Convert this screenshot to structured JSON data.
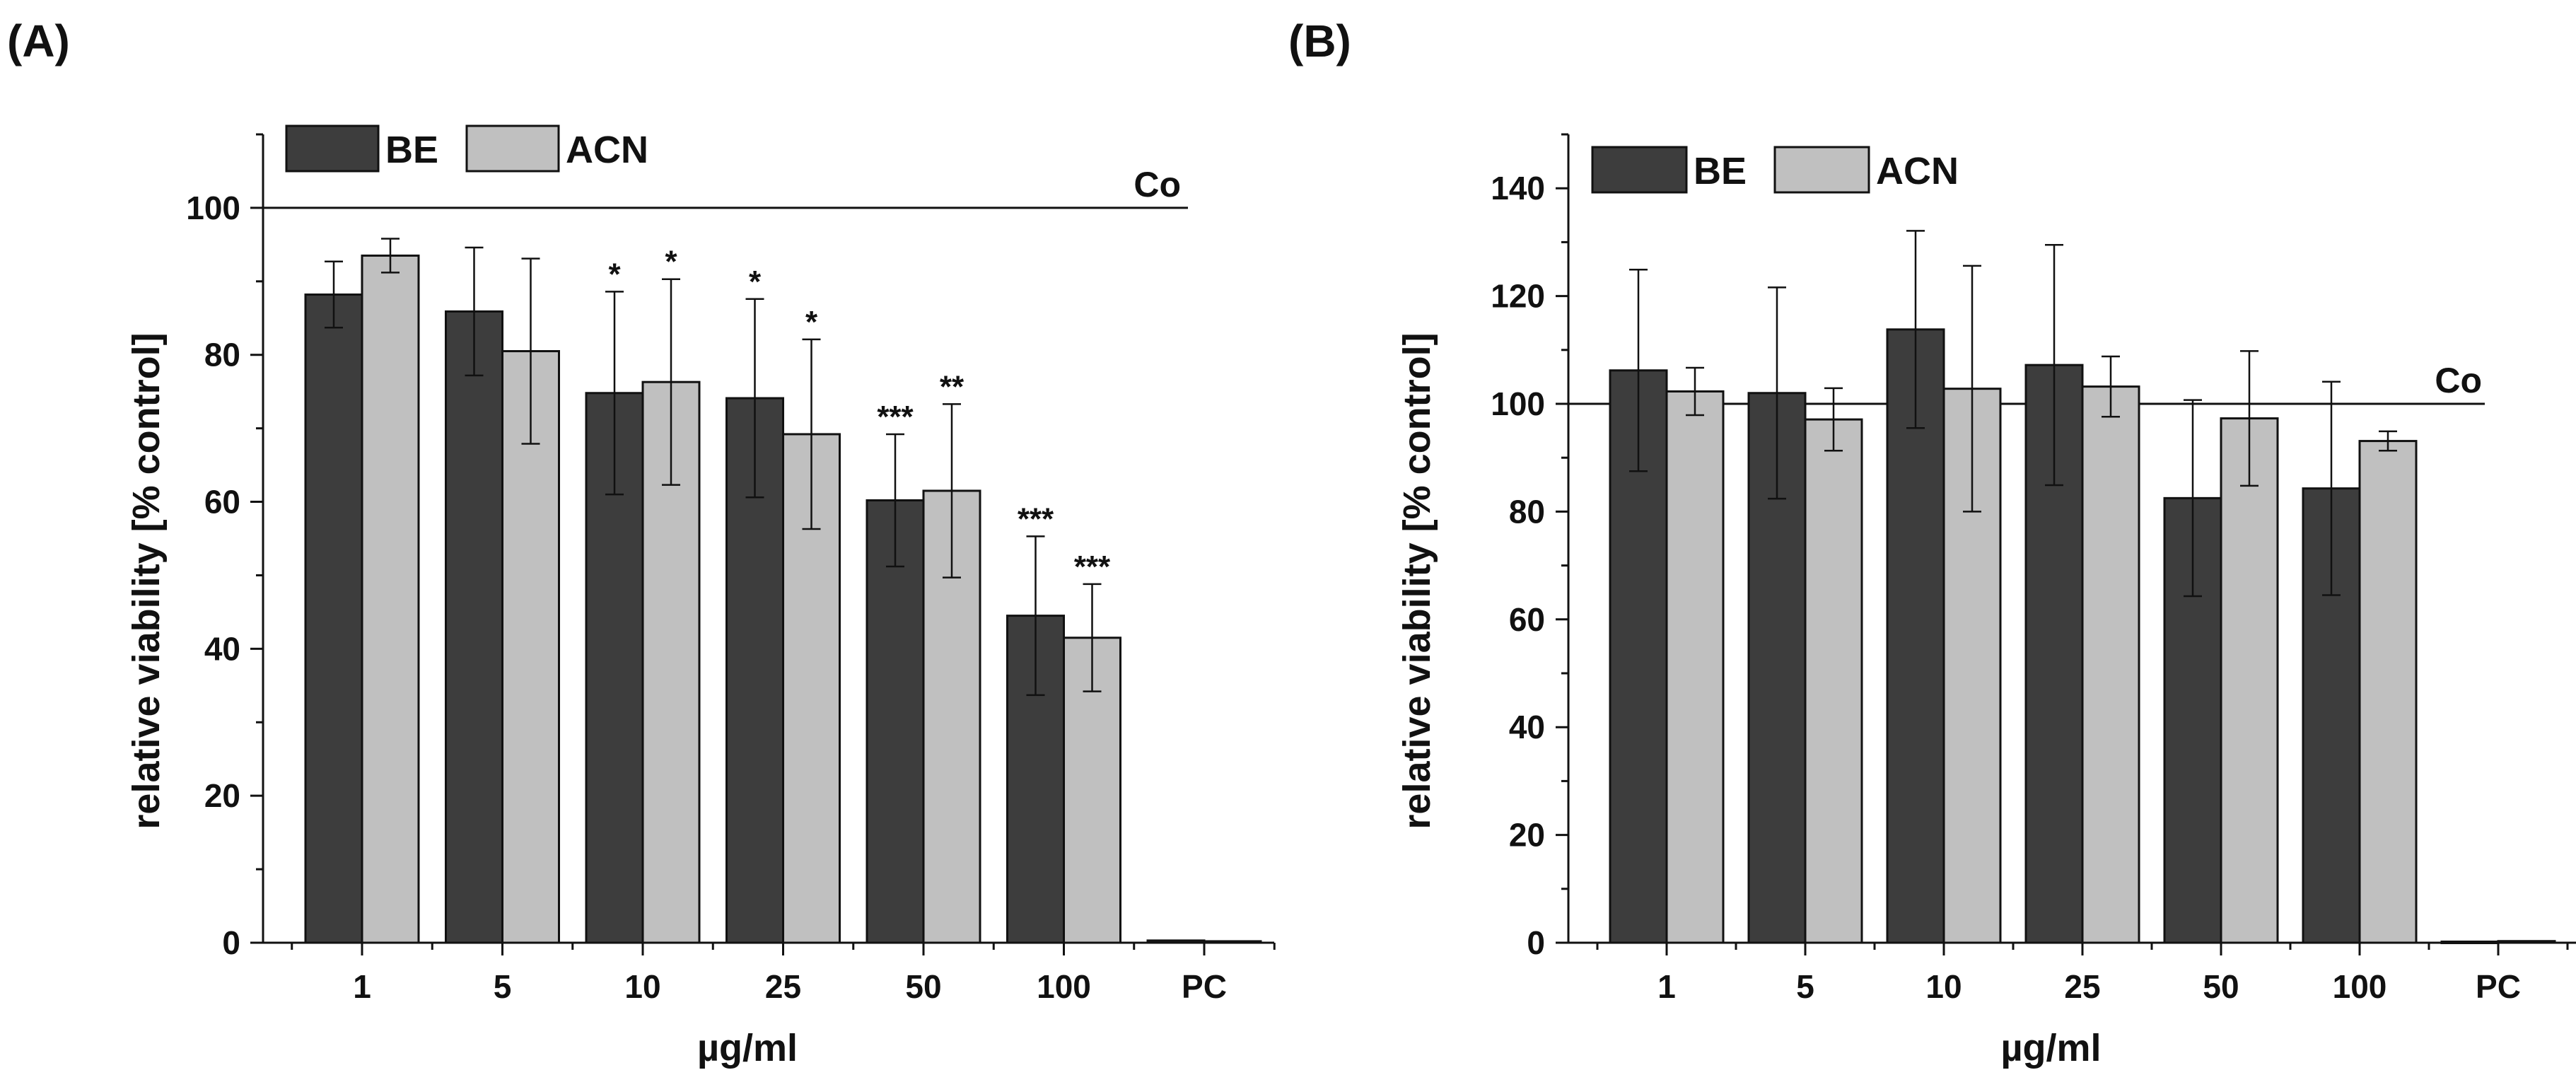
{
  "chart_data": [
    {
      "type": "bar",
      "panel_label": "(A)",
      "categories": [
        "1",
        "5",
        "10",
        "25",
        "50",
        "100",
        "PC"
      ],
      "series": [
        {
          "name": "BE",
          "color": "#3d3d3d",
          "values": [
            88.2,
            85.9,
            74.8,
            74.1,
            60.2,
            44.5,
            0.3
          ],
          "errors": [
            4.5,
            8.7,
            13.8,
            13.5,
            9.0,
            10.8,
            0
          ],
          "significance": [
            "",
            "",
            "*",
            "*",
            "***",
            "***",
            ""
          ]
        },
        {
          "name": "ACN",
          "color": "#c0c0c0",
          "values": [
            93.5,
            80.5,
            76.3,
            69.2,
            61.5,
            41.5,
            0.2
          ],
          "errors": [
            2.3,
            12.6,
            14.0,
            12.9,
            11.8,
            7.3,
            0
          ],
          "significance": [
            "",
            "",
            "*",
            "*",
            "**",
            "***",
            ""
          ]
        }
      ],
      "reference_line": {
        "value": 100,
        "label": "Co"
      },
      "xlabel": "µg/ml",
      "ylabel": "relative viability [% control]",
      "ylim": [
        0,
        110
      ],
      "yticks": [
        0,
        20,
        40,
        60,
        80,
        100
      ],
      "grid": false,
      "legend": "top-left"
    },
    {
      "type": "bar",
      "panel_label": "(B)",
      "categories": [
        "1",
        "5",
        "10",
        "25",
        "50",
        "100",
        "PC"
      ],
      "series": [
        {
          "name": "BE",
          "color": "#3d3d3d",
          "values": [
            106.2,
            102.0,
            113.8,
            107.2,
            82.5,
            84.3,
            0.2
          ],
          "errors": [
            18.7,
            19.6,
            18.3,
            22.3,
            18.2,
            19.8,
            0
          ]
        },
        {
          "name": "ACN",
          "color": "#c0c0c0",
          "values": [
            102.3,
            97.1,
            102.8,
            103.2,
            97.3,
            93.1,
            0.3
          ],
          "errors": [
            4.4,
            5.8,
            22.8,
            5.6,
            12.5,
            1.8,
            0
          ]
        }
      ],
      "reference_line": {
        "value": 100,
        "label": "Co"
      },
      "xlabel": "µg/ml",
      "ylabel": "relative viability [% control]",
      "ylim": [
        0,
        150
      ],
      "yticks": [
        0,
        20,
        40,
        60,
        80,
        100,
        120,
        140
      ],
      "grid": false,
      "legend": "top-left"
    }
  ]
}
